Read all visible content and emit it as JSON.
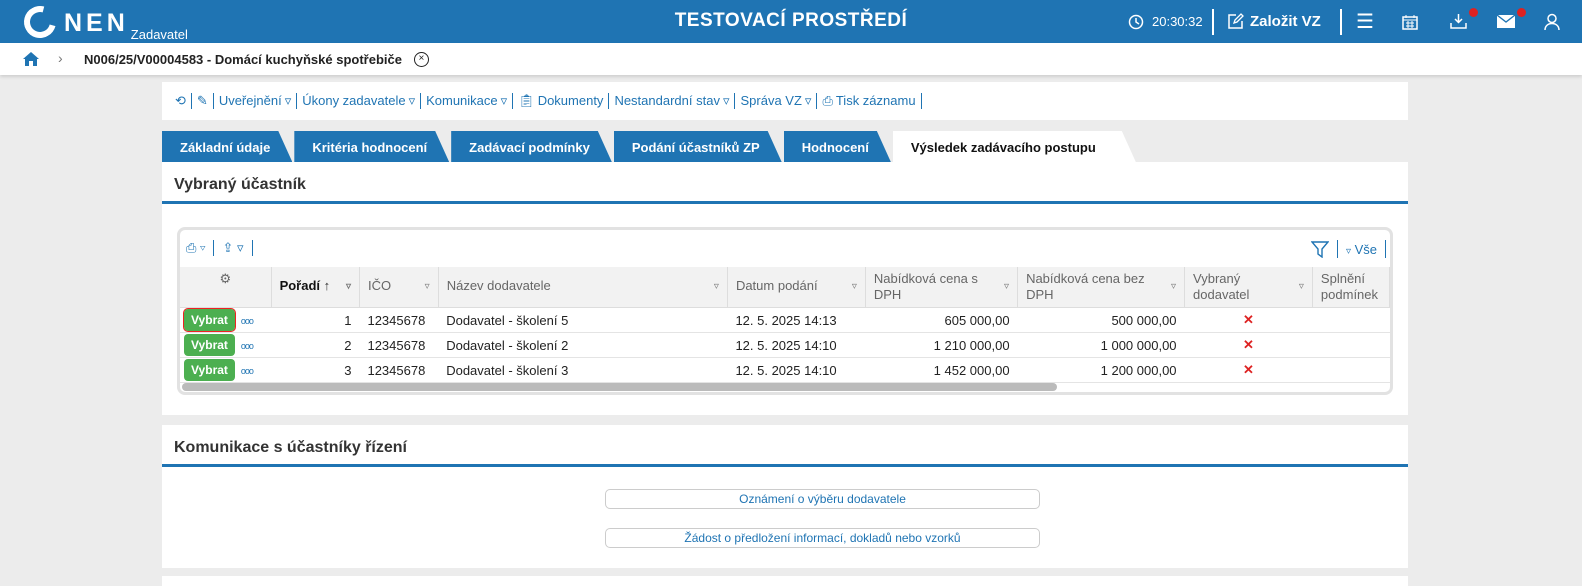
{
  "header": {
    "logo": "NEN",
    "logo_sub": "Zadavatel",
    "title": "TESTOVACÍ PROSTŘEDÍ",
    "time": "20:30:32",
    "create_label": "Založit VZ",
    "colors": {
      "primary": "#1f74b3",
      "badge": "#d22222"
    }
  },
  "breadcrumb": {
    "text": "N006/25/V00004583 - Domácí kuchyňské spotřebiče"
  },
  "toolbar": {
    "items": [
      "Uveřejnění",
      "Úkony zadavatele",
      "Komunikace",
      "Dokumenty",
      "Nestandardní stav",
      "Správa VZ",
      "Tisk záznamu"
    ]
  },
  "tabs": [
    "Základní údaje",
    "Kritéria hodnocení",
    "Zadávací podmínky",
    "Podání účastníků ZP",
    "Hodnocení",
    "Výsledek zadávacího postupu"
  ],
  "section1": {
    "title": "Vybraný účastník",
    "filter_all": "Vše",
    "columns": [
      "Pořadí",
      "IČO",
      "Název dodavatele",
      "Datum podání",
      "Nabídková cena s DPH",
      "Nabídková cena bez DPH",
      "Vybraný dodavatel",
      "Splnění podmínek"
    ],
    "select_label": "Vybrat",
    "rows": [
      {
        "order": "1",
        "ico": "12345678",
        "name": "Dodavatel - školení 5",
        "date": "12. 5. 2025 14:13",
        "price_vat": "605 000,00",
        "price": "500 000,00"
      },
      {
        "order": "2",
        "ico": "12345678",
        "name": "Dodavatel - školení 2",
        "date": "12. 5. 2025 14:10",
        "price_vat": "1 210 000,00",
        "price": "1 000 000,00"
      },
      {
        "order": "3",
        "ico": "12345678",
        "name": "Dodavatel - školení 3",
        "date": "12. 5. 2025 14:10",
        "price_vat": "1 452 000,00",
        "price": "1 200 000,00"
      }
    ]
  },
  "section2": {
    "title": "Komunikace s účastníky řízení",
    "buttons": [
      "Oznámení o výběru dodavatele",
      "Žádost o předložení informací, dokladů nebo vzorků"
    ]
  }
}
